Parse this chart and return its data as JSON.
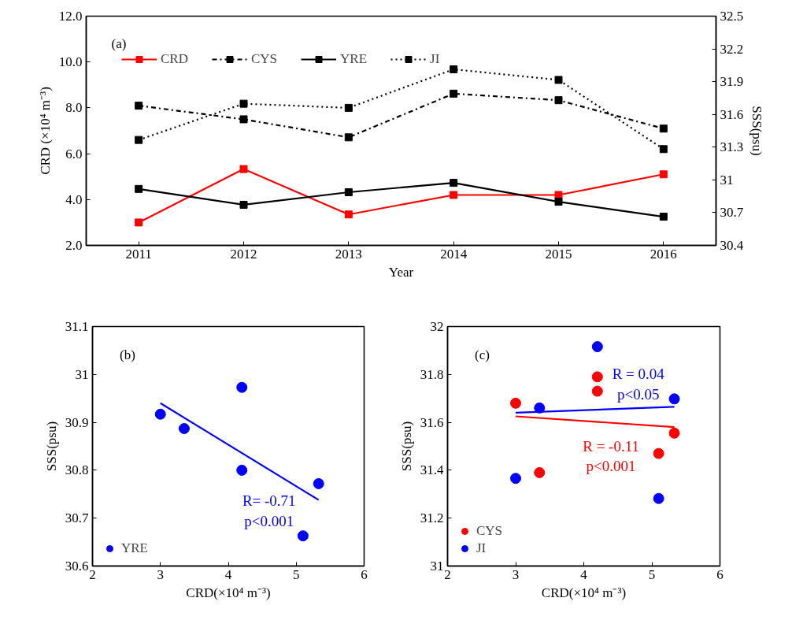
{
  "chart_data": [
    {
      "type": "line",
      "categories": [
        "2011",
        "2012",
        "2013",
        "2014",
        "2015",
        "2016"
      ],
      "xlabel": "Year",
      "ylabel": "CRD (×10⁴ m⁻³)",
      "y2label": "SSS(psu)",
      "ylim": [
        2,
        12
      ],
      "yticks": [
        {
          "value": 2,
          "label": "2.0"
        },
        {
          "value": 4,
          "label": "4.0"
        },
        {
          "value": 6,
          "label": "6.0"
        },
        {
          "value": 8,
          "label": "8.0"
        },
        {
          "value": 10,
          "label": "10.0"
        },
        {
          "value": 12,
          "label": "12.0"
        }
      ],
      "y2lim": [
        30.4,
        32.5
      ],
      "y2ticks": [
        30.4,
        30.7,
        31,
        31.3,
        31.6,
        31.9,
        32.2,
        32.5
      ],
      "marker": "square",
      "grid": false,
      "legend": "top left",
      "annotations": [
        "(a)"
      ],
      "series": [
        {
          "name": "CRD",
          "color": "#ff0000",
          "line_style": "solid",
          "values": [
            3.0,
            5.33,
            3.35,
            4.2,
            4.2,
            5.1
          ]
        },
        {
          "name": "CYS",
          "color": "#000000",
          "line_style": "dashdot",
          "axis": "y2",
          "values": [
            31.68,
            31.555,
            31.39,
            31.79,
            31.73,
            31.47
          ]
        },
        {
          "name": "YRE",
          "color": "#000000",
          "line_style": "solid",
          "axis": "y2",
          "values": [
            30.917,
            30.772,
            30.887,
            30.973,
            30.8,
            30.663
          ]
        },
        {
          "name": "JI",
          "color": "#000000",
          "line_style": "dotted",
          "axis": "y2",
          "values": [
            31.366,
            31.698,
            31.66,
            32.013,
            31.916,
            31.282
          ]
        }
      ]
    },
    {
      "type": "scatter",
      "xlabel": "CRD(×10⁴ m⁻³)",
      "ylabel": "SSS(psu)",
      "xlim": [
        2,
        6
      ],
      "xticks": [
        2,
        3,
        4,
        5,
        6
      ],
      "ylim": [
        30.6,
        31.1
      ],
      "yticks": [
        30.6,
        30.7,
        30.8,
        30.9,
        31,
        31.1
      ],
      "marker": "circle",
      "grid": false,
      "legend": "bottom left",
      "annotations": [
        "(b)",
        "R= -0.71\np<0.001"
      ],
      "series": [
        {
          "name": "YRE",
          "color": "#0000ff",
          "x": [
            3.0,
            5.33,
            3.35,
            4.2,
            4.2,
            5.1
          ],
          "values": [
            30.917,
            30.772,
            30.887,
            30.973,
            30.8,
            30.663
          ]
        },
        {
          "type": "line",
          "color": "#0000ff",
          "marker": "none",
          "x": [
            3.0,
            5.33
          ],
          "values": [
            30.94,
            30.738
          ]
        }
      ]
    },
    {
      "type": "scatter",
      "xlabel": "CRD(×10⁴ m⁻³)",
      "ylabel": "SSS(psu)",
      "xlim": [
        2,
        6
      ],
      "xticks": [
        2,
        3,
        4,
        5,
        6
      ],
      "ylim": [
        31,
        32
      ],
      "yticks": [
        31,
        31.2,
        31.4,
        31.6,
        31.8,
        32
      ],
      "marker": "circle",
      "grid": false,
      "legend": "bottom left",
      "annotations": [
        "(c)",
        "R = 0.04\np<0.05",
        "R = -0.11\np<0.001"
      ],
      "series": [
        {
          "name": "CYS",
          "color": "#ff0000",
          "x": [
            3.0,
            5.33,
            3.35,
            4.2,
            4.2,
            5.1
          ],
          "values": [
            31.68,
            31.555,
            31.39,
            31.79,
            31.73,
            31.47
          ]
        },
        {
          "name": "JI",
          "color": "#0000ff",
          "x": [
            3.0,
            5.33,
            3.35,
            4.2,
            5.1
          ],
          "values": [
            31.366,
            31.698,
            31.66,
            31.916,
            31.282
          ]
        },
        {
          "type": "line",
          "color": "#0000ff",
          "marker": "none",
          "x": [
            3.0,
            5.33
          ],
          "values": [
            31.64,
            31.665
          ]
        },
        {
          "type": "line",
          "color": "#ff0000",
          "marker": "none",
          "x": [
            3.0,
            5.33
          ],
          "values": [
            31.625,
            31.58
          ]
        }
      ]
    }
  ]
}
